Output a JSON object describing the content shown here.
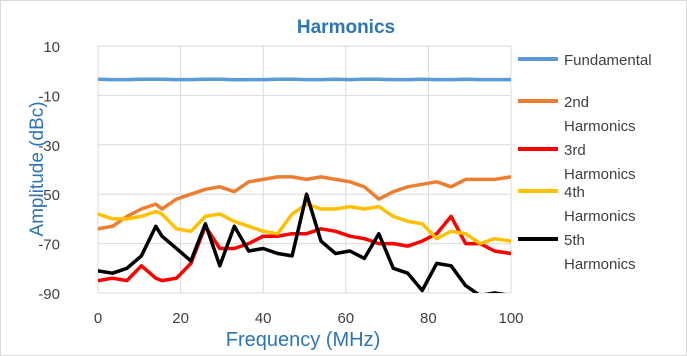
{
  "chart_data": {
    "type": "line",
    "title": "Harmonics",
    "xlabel": "Frequency (MHz)",
    "ylabel": "Amplitude (dBc)",
    "xlim": [
      0,
      100
    ],
    "ylim": [
      -90,
      10
    ],
    "x_ticks": [
      "0",
      "20",
      "40",
      "60",
      "80",
      "100"
    ],
    "y_ticks": [
      "10",
      "-10",
      "-30",
      "-50",
      "-70",
      "-90"
    ],
    "grid": true,
    "legend_position": "right",
    "x": [
      0,
      3.5,
      7,
      10.5,
      14,
      15.5,
      19,
      22.5,
      26,
      29.5,
      33,
      36.5,
      40,
      43.5,
      47,
      50.5,
      54,
      57.5,
      61,
      64.5,
      68,
      71.5,
      75,
      78.5,
      82,
      85.5,
      89,
      92.5,
      96,
      100
    ],
    "series": [
      {
        "name": "Fundamental",
        "color": "#5b9bd5",
        "values": [
          -3.5,
          -3.6,
          -3.6,
          -3.5,
          -3.5,
          -3.5,
          -3.6,
          -3.6,
          -3.5,
          -3.5,
          -3.7,
          -3.6,
          -3.6,
          -3.5,
          -3.5,
          -3.6,
          -3.6,
          -3.5,
          -3.6,
          -3.5,
          -3.5,
          -3.6,
          -3.6,
          -3.5,
          -3.6,
          -3.6,
          -3.5,
          -3.6,
          -3.6,
          -3.6
        ]
      },
      {
        "name": "2nd Harmonics",
        "color": "#ed7d31",
        "values": [
          -64,
          -63,
          -59,
          -56,
          -54,
          -56,
          -52,
          -50,
          -48,
          -47,
          -49,
          -45,
          -44,
          -43,
          -43,
          -44,
          -43,
          -44,
          -45,
          -47,
          -52,
          -49,
          -47,
          -46,
          -45,
          -47,
          -44,
          -44,
          -44,
          -43
        ]
      },
      {
        "name": "3rd Harmonics",
        "color": "#ff0000",
        "values": [
          -85,
          -84,
          -85,
          -79,
          -84,
          -85,
          -84,
          -78,
          -63,
          -72,
          -72,
          -70,
          -67,
          -67,
          -66,
          -66,
          -64,
          -65,
          -67,
          -68,
          -70,
          -70,
          -71,
          -69,
          -66,
          -59,
          -70,
          -70,
          -73,
          -74
        ]
      },
      {
        "name": "4th Harmonics",
        "color": "#ffc000",
        "values": [
          -58,
          -60,
          -60,
          -59,
          -57,
          -58,
          -64,
          -65,
          -59,
          -58,
          -61,
          -63,
          -65,
          -66,
          -58,
          -54,
          -56,
          -56,
          -55,
          -56,
          -55,
          -59,
          -61,
          -62,
          -68,
          -65,
          -66,
          -70,
          -68,
          -69
        ]
      },
      {
        "name": "5th Harmonics",
        "color": "#000000",
        "values": [
          -81,
          -82,
          -80,
          -75,
          -63,
          -67,
          -72,
          -77,
          -62,
          -79,
          -63,
          -73,
          -72,
          -74,
          -75,
          -50,
          -69,
          -74,
          -73,
          -76,
          -66,
          -80,
          -82,
          -89,
          -78,
          -79,
          -87,
          -91,
          -90,
          -91
        ]
      }
    ]
  }
}
